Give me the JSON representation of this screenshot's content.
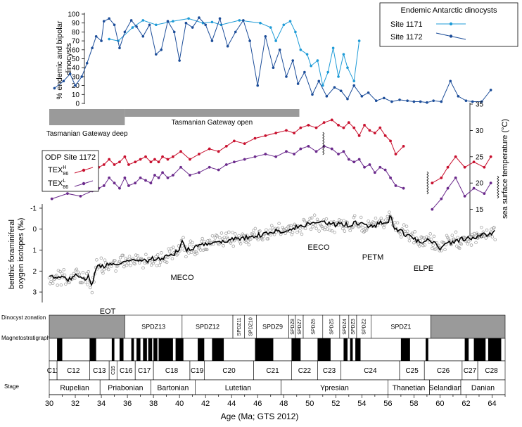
{
  "chart_data": [
    {
      "type": "line",
      "ylabel": "% endemic and bipolar dinocysts",
      "ylim": [
        0,
        100
      ],
      "yticks": [
        0,
        10,
        20,
        30,
        40,
        50,
        60,
        70,
        80,
        90,
        100
      ],
      "legend": {
        "title": "Endemic Antarctic dinocysts",
        "placement": "top-right"
      },
      "series": [
        {
          "name": "Site 1171",
          "color": "#1e9bd7",
          "x": [
            34.6,
            35.3,
            36.4,
            37.2,
            38.2,
            39.5,
            40.7,
            41.8,
            42.5,
            43.2,
            44.6,
            46.2,
            47.0,
            47.4,
            48.0,
            48.5,
            48.9,
            49.3,
            49.8,
            50.1,
            50.6,
            51.0,
            51.4,
            51.8,
            52.2,
            52.6,
            52.9,
            53.4,
            53.8
          ],
          "values": [
            72,
            70,
            85,
            93,
            88,
            92,
            95,
            90,
            91,
            88,
            93,
            90,
            85,
            70,
            88,
            92,
            80,
            60,
            55,
            42,
            48,
            20,
            35,
            62,
            30,
            55,
            40,
            25,
            70
          ]
        },
        {
          "name": "Site 1172",
          "color": "#1c4d99",
          "x": [
            30.4,
            31.1,
            31.6,
            32.0,
            32.5,
            32.9,
            33.3,
            33.6,
            34.0,
            34.2,
            34.6,
            35.0,
            35.4,
            35.8,
            36.3,
            36.7,
            37.2,
            37.7,
            38.2,
            38.6,
            39.1,
            39.6,
            40.0,
            40.5,
            41.0,
            41.5,
            42.0,
            42.5,
            43.1,
            43.7,
            44.3,
            44.9,
            45.4,
            46.0,
            46.6,
            47.2,
            47.7,
            48.2,
            48.7,
            49.1,
            49.6,
            50.2,
            50.7,
            51.3,
            51.9,
            52.4,
            52.9,
            53.4,
            54.0,
            54.5,
            55.1,
            55.7,
            56.3,
            56.9,
            57.5,
            58.0,
            58.5,
            59.0,
            59.5,
            60.1,
            60.8,
            61.4,
            62.0,
            62.5,
            63.2,
            63.9
          ],
          "values": [
            17,
            25,
            33,
            20,
            30,
            45,
            62,
            75,
            70,
            92,
            95,
            88,
            62,
            80,
            93,
            86,
            75,
            88,
            55,
            60,
            92,
            80,
            48,
            90,
            85,
            96,
            88,
            70,
            95,
            64,
            80,
            93,
            70,
            20,
            75,
            40,
            60,
            30,
            48,
            22,
            35,
            10,
            25,
            8,
            18,
            14,
            5,
            20,
            8,
            12,
            3,
            6,
            2,
            4,
            3,
            2,
            2,
            1,
            3,
            2,
            25,
            8,
            3,
            2,
            2,
            15
          ]
        }
      ]
    },
    {
      "type": "line",
      "ylabel": "sea surface temperature (°C)",
      "ylim": [
        10,
        35
      ],
      "yticks": [
        10,
        15,
        20,
        25,
        30,
        35
      ],
      "legend": {
        "title": "ODP Site 1172",
        "placement": "middle-left"
      },
      "series": [
        {
          "name": "TEXH86",
          "color": "#c8102e",
          "x": [
            30.2,
            31.4,
            32.4,
            33.3,
            33.8,
            34.2,
            34.6,
            35.0,
            35.4,
            35.8,
            36.1,
            36.6,
            37.0,
            37.4,
            37.8,
            38.1,
            38.4,
            38.7,
            39.1,
            39.5,
            40.1,
            40.8,
            41.5,
            42.3,
            43.0,
            43.6,
            44.2,
            45.0,
            45.8,
            46.6,
            47.4,
            48.2,
            48.8,
            49.3,
            49.9,
            50.5,
            51.1,
            51.7,
            52.2,
            52.6,
            53.0,
            53.4,
            53.8,
            54.2,
            54.6,
            55.0,
            55.4,
            55.8,
            56.2,
            56.6,
            57.2,
            59.4,
            60.1,
            60.6,
            61.2,
            61.9,
            62.6,
            63.4,
            63.9
          ],
          "values": [
            21,
            22,
            21.5,
            22.5,
            23,
            23.5,
            24.5,
            23.5,
            24,
            25,
            23.5,
            24,
            24.5,
            25,
            24,
            24.5,
            24,
            25,
            24.5,
            25,
            26,
            24.5,
            25.5,
            26.5,
            26,
            27,
            28,
            27.5,
            28.5,
            29,
            29.5,
            30,
            29.5,
            30.5,
            31,
            30.5,
            31.5,
            32,
            31,
            30.5,
            31.5,
            30.5,
            29,
            31,
            30,
            29.5,
            30.5,
            29,
            28,
            25.5,
            27,
            20,
            21,
            23,
            25,
            23,
            24,
            23,
            25
          ]
        },
        {
          "name": "TEXL86",
          "color": "#6b2a8c",
          "x": [
            30.2,
            31.4,
            32.4,
            33.3,
            33.8,
            34.2,
            34.6,
            35.0,
            35.4,
            35.8,
            36.1,
            36.6,
            37.0,
            37.4,
            37.8,
            38.1,
            38.4,
            38.7,
            39.1,
            39.5,
            40.1,
            40.8,
            41.5,
            42.3,
            43.0,
            43.6,
            44.2,
            45.0,
            45.8,
            46.6,
            47.4,
            48.2,
            48.8,
            49.3,
            49.9,
            50.5,
            51.1,
            51.7,
            52.2,
            52.6,
            53.0,
            53.4,
            53.8,
            54.2,
            54.6,
            55.0,
            55.4,
            55.8,
            56.2,
            56.6,
            57.2,
            59.4,
            60.1,
            60.6,
            61.2,
            61.9,
            62.6,
            63.4,
            63.9
          ],
          "values": [
            17,
            18,
            17.5,
            18.5,
            19,
            19.5,
            21,
            20,
            19,
            21,
            19.5,
            20,
            21,
            20.5,
            20,
            21.5,
            21,
            22,
            21,
            21.5,
            23,
            21.5,
            22,
            23,
            22.5,
            23.5,
            24,
            24.5,
            25,
            25.5,
            25,
            26,
            25.5,
            26.5,
            27,
            26,
            27,
            26.5,
            25.5,
            26,
            24.5,
            24,
            24.5,
            23,
            23.5,
            22,
            23,
            22.5,
            21,
            19.5,
            19,
            15,
            17,
            19,
            21,
            17.5,
            19,
            18,
            20
          ]
        }
      ]
    },
    {
      "type": "line",
      "ylabel": "benthic foraminiferal oxygen isotopes (‰)",
      "ylim": [
        3.5,
        -1.2
      ],
      "yticks": [
        -1,
        0,
        1,
        2,
        3
      ],
      "series": [
        {
          "name": "",
          "color": "#000000",
          "x": [
            30,
            30.5,
            31,
            31.5,
            32,
            32.5,
            33,
            33.3,
            33.5,
            33.7,
            34,
            34.5,
            35,
            35.5,
            36,
            36.5,
            37,
            37.5,
            38,
            38.5,
            39,
            39.5,
            40,
            40.2,
            40.5,
            41,
            41.5,
            42,
            42.5,
            43,
            43.5,
            44,
            44.5,
            45,
            45.5,
            46,
            46.5,
            47,
            47.5,
            48,
            48.5,
            49,
            49.5,
            50,
            50.5,
            51,
            51.5,
            52,
            52.5,
            53,
            53.5,
            54,
            54.5,
            55,
            55.5,
            55.9,
            56.2,
            56.5,
            57,
            57.5,
            58,
            58.5,
            59,
            59.5,
            60,
            60.5,
            61,
            61.5,
            62,
            62.5,
            63,
            63.5,
            64,
            64.3
          ],
          "values": [
            2.3,
            2.3,
            2.2,
            2.4,
            2.2,
            2.4,
            2.3,
            2.7,
            2.0,
            1.8,
            1.8,
            1.7,
            1.7,
            1.6,
            1.55,
            1.5,
            1.45,
            1.5,
            1.4,
            1.45,
            1.3,
            1.2,
            1.0,
            0.5,
            1.0,
            0.9,
            0.8,
            0.75,
            0.65,
            0.6,
            0.55,
            0.5,
            0.45,
            0.4,
            0.35,
            0.3,
            0.25,
            0.15,
            0.1,
            0.05,
            0,
            -0.1,
            -0.15,
            -0.3,
            -0.35,
            -0.3,
            -0.25,
            -0.2,
            -0.25,
            -0.2,
            -0.3,
            -0.25,
            -0.1,
            -0.15,
            -0.35,
            -0.2,
            -0.6,
            -0.1,
            0.1,
            0.3,
            0.5,
            0.6,
            0.5,
            0.6,
            0.9,
            0.7,
            0.6,
            0.5,
            0.45,
            0.4,
            0.3,
            0.25,
            0.2,
            0.15
          ]
        }
      ],
      "annotations": [
        "EOT",
        "MECO",
        "EECO",
        "PETM",
        "ELPE"
      ]
    }
  ],
  "gateway": {
    "deep": {
      "label": "Tasmanian Gateway deep",
      "x_start": 30,
      "x_end": 35.8
    },
    "open": {
      "label": "Tasmanian Gateway open",
      "x_start": 35.8,
      "x_end": 49.2
    }
  },
  "timescale": {
    "xlabel": "Age (Ma; GTS 2012)",
    "xlim": [
      30,
      65
    ],
    "xticks": [
      30,
      32,
      34,
      36,
      38,
      40,
      42,
      44,
      46,
      48,
      50,
      52,
      54,
      56,
      58,
      60,
      62,
      64
    ],
    "rows": {
      "dinocyst": "Dinocyst zonation",
      "magneto": "Magnetostratigraphy",
      "stage": "Stage"
    },
    "dinocyst_zones": [
      {
        "label": "",
        "from": 30,
        "to": 35.8,
        "shaded": true
      },
      {
        "label": "SPDZ13",
        "from": 35.8,
        "to": 40.2
      },
      {
        "label": "SPDZ12",
        "from": 40.2,
        "to": 44.1
      },
      {
        "label": "SPDZ11",
        "from": 44.1,
        "to": 45.0,
        "vertical": true
      },
      {
        "label": "SPDZ10",
        "from": 45.0,
        "to": 45.9,
        "vertical": true
      },
      {
        "label": "SPDZ9",
        "from": 45.9,
        "to": 48.4
      },
      {
        "label": "SPDZ8",
        "from": 48.4,
        "to": 48.9,
        "vertical": true
      },
      {
        "label": "SPDZ7",
        "from": 48.9,
        "to": 49.5,
        "vertical": true
      },
      {
        "label": "SPDZ6",
        "from": 49.5,
        "to": 51.0,
        "vertical": true
      },
      {
        "label": "SPDZ5",
        "from": 51.0,
        "to": 52.3,
        "vertical": true
      },
      {
        "label": "SPDZ4",
        "from": 52.3,
        "to": 53.0,
        "vertical": true
      },
      {
        "label": "SPDZ3",
        "from": 53.0,
        "to": 53.6,
        "vertical": true
      },
      {
        "label": "SPDZ2",
        "from": 53.6,
        "to": 54.7,
        "vertical": true
      },
      {
        "label": "SPDZ1",
        "from": 54.7,
        "to": 59.3
      },
      {
        "label": "",
        "from": 59.3,
        "to": 65,
        "shaded": true
      }
    ],
    "normal_polarity": [
      [
        30.6,
        31.0
      ],
      [
        33.1,
        33.6
      ],
      [
        34.8,
        35.0
      ],
      [
        35.4,
        35.7
      ],
      [
        36.3,
        36.5
      ],
      [
        36.7,
        37.0
      ],
      [
        37.2,
        37.5
      ],
      [
        37.6,
        37.9
      ],
      [
        38.0,
        38.3
      ],
      [
        38.4,
        39.5
      ],
      [
        39.7,
        40.3
      ],
      [
        41.4,
        41.9
      ],
      [
        42.5,
        43.4
      ],
      [
        45.8,
        47.2
      ],
      [
        48.6,
        49.3
      ],
      [
        50.6,
        51.6
      ],
      [
        52.6,
        52.9
      ],
      [
        53.1,
        53.3
      ],
      [
        53.5,
        53.9
      ],
      [
        57.0,
        57.7
      ],
      [
        58.9,
        59.1
      ],
      [
        61.9,
        62.2
      ],
      [
        62.6,
        63.5
      ],
      [
        63.7,
        64.7
      ]
    ],
    "chrons": [
      {
        "label": "C11",
        "from": 30,
        "to": 30.6
      },
      {
        "label": "C12",
        "from": 30.6,
        "to": 33.1
      },
      {
        "label": "C13",
        "from": 33.1,
        "to": 34.6
      },
      {
        "label": "C15",
        "from": 34.6,
        "to": 35.2,
        "vertical": true
      },
      {
        "label": "C16",
        "from": 35.2,
        "to": 36.6
      },
      {
        "label": "C17",
        "from": 36.6,
        "to": 38.0
      },
      {
        "label": "C18",
        "from": 38.0,
        "to": 40.8
      },
      {
        "label": "C19",
        "from": 40.8,
        "to": 41.9
      },
      {
        "label": "C20",
        "from": 41.9,
        "to": 45.7
      },
      {
        "label": "C21",
        "from": 45.7,
        "to": 48.6
      },
      {
        "label": "C22",
        "from": 48.6,
        "to": 50.6
      },
      {
        "label": "C23",
        "from": 50.6,
        "to": 52.4
      },
      {
        "label": "C24",
        "from": 52.4,
        "to": 56.9
      },
      {
        "label": "C25",
        "from": 56.9,
        "to": 58.8
      },
      {
        "label": "C26",
        "from": 58.8,
        "to": 61.7
      },
      {
        "label": "C27",
        "from": 61.7,
        "to": 62.9
      },
      {
        "label": "C28",
        "from": 62.9,
        "to": 65
      }
    ],
    "stages": [
      {
        "label": "Rupelian",
        "from": 30,
        "to": 33.9
      },
      {
        "label": "Priabonian",
        "from": 33.9,
        "to": 37.8
      },
      {
        "label": "Bartonian",
        "from": 37.8,
        "to": 41.2
      },
      {
        "label": "Lutetian",
        "from": 41.2,
        "to": 47.8
      },
      {
        "label": "Ypresian",
        "from": 47.8,
        "to": 56.0
      },
      {
        "label": "Thanetian",
        "from": 56.0,
        "to": 59.2
      },
      {
        "label": "Selandian",
        "from": 59.2,
        "to": 61.6
      },
      {
        "label": "Danian",
        "from": 61.6,
        "to": 65
      }
    ]
  }
}
